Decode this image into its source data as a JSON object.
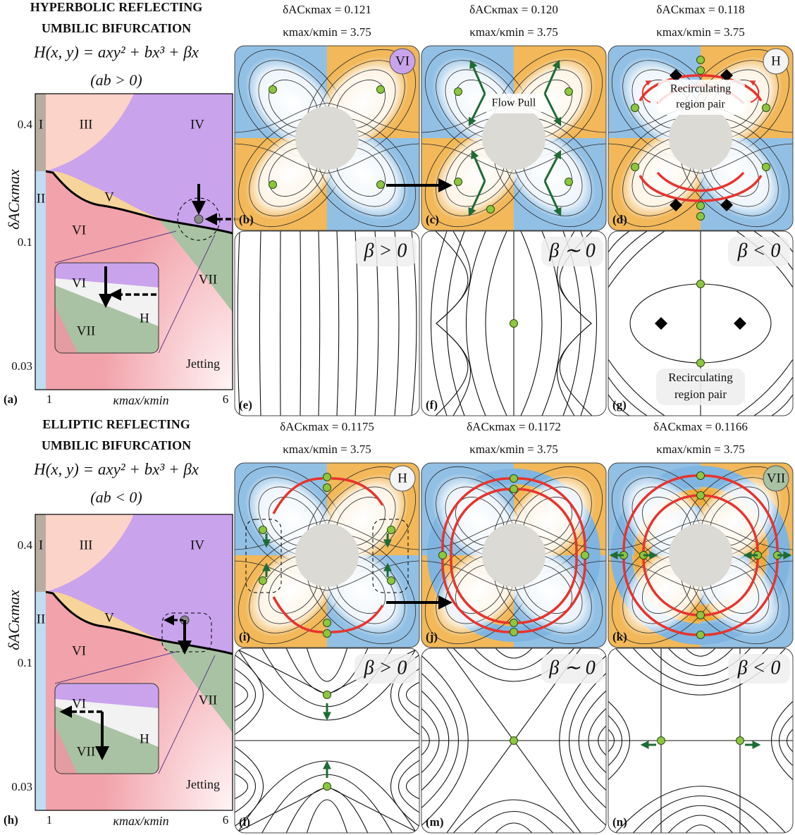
{
  "sections": [
    {
      "title": [
        "HYPERBOLIC REFLECTING",
        "UMBILIC BIFURCATION"
      ],
      "equation": "H(x, y) = axy² + bx³ + βx",
      "condition": "(ab > 0)",
      "phase_diagram": {
        "panel_label": "(a)",
        "x_label": "κmax/κmin",
        "y_label": "δACκmax",
        "x_ticks": [
          "1",
          "6"
        ],
        "y_ticks": [
          "0.4",
          "0.1",
          "0.03"
        ],
        "regions": [
          "I",
          "II",
          "III",
          "IV",
          "V",
          "VI",
          "VII",
          "Jetting"
        ],
        "inset_regions": [
          "VI",
          "H",
          "VII"
        ]
      },
      "panels": [
        {
          "param1": "δACκmax = 0.121",
          "param2": "κmax/κmin = 3.75",
          "label": "(b)",
          "badge": "VI",
          "badge_color": "#c9a3ec"
        },
        {
          "param1": "δACκmax = 0.120",
          "param2": "κmax/κmin = 3.75",
          "label": "(c)",
          "annotation": [
            "Flow Pull"
          ]
        },
        {
          "param1": "δACκmax = 0.118",
          "param2": "κmax/κmin = 3.75",
          "label": "(d)",
          "badge": "H",
          "badge_color": "#f4f4f4",
          "annotation": [
            "Recirculating",
            "region pair"
          ]
        }
      ],
      "normal_forms": [
        {
          "label": "(e)",
          "beta": "β > 0"
        },
        {
          "label": "(f)",
          "beta": "β ∼ 0"
        },
        {
          "label": "(g)",
          "beta": "β < 0",
          "annotation": [
            "Recirculating",
            "region pair"
          ]
        }
      ]
    },
    {
      "title": [
        "ELLIPTIC REFLECTING",
        "UMBILIC BIFURCATION"
      ],
      "equation": "H(x, y) = axy² + bx³ + βx",
      "condition": "(ab < 0)",
      "phase_diagram": {
        "panel_label": "(h)",
        "x_label": "κmax/κmin",
        "y_label": "δACκmax",
        "x_ticks": [
          "1",
          "6"
        ],
        "y_ticks": [
          "0.4",
          "0.1",
          "0.03"
        ],
        "regions": [
          "I",
          "II",
          "III",
          "IV",
          "V",
          "VI",
          "VII",
          "Jetting"
        ],
        "inset_regions": [
          "VI",
          "H",
          "VII"
        ]
      },
      "panels": [
        {
          "param1": "δACκmax = 0.1175",
          "param2": "κmax/κmin = 3.75",
          "label": "(i)",
          "badge": "H",
          "badge_color": "#f4f4f4"
        },
        {
          "param1": "δACκmax = 0.1172",
          "param2": "κmax/κmin = 3.75",
          "label": "(j)"
        },
        {
          "param1": "δACκmax = 0.1166",
          "param2": "κmax/κmin = 3.75",
          "label": "(k)",
          "badge": "VII",
          "badge_color": "#a9c2a3"
        }
      ],
      "normal_forms": [
        {
          "label": "(l)",
          "beta": "β > 0"
        },
        {
          "label": "(m)",
          "beta": "β ∼ 0"
        },
        {
          "label": "(n)",
          "beta": "β < 0"
        }
      ]
    }
  ]
}
